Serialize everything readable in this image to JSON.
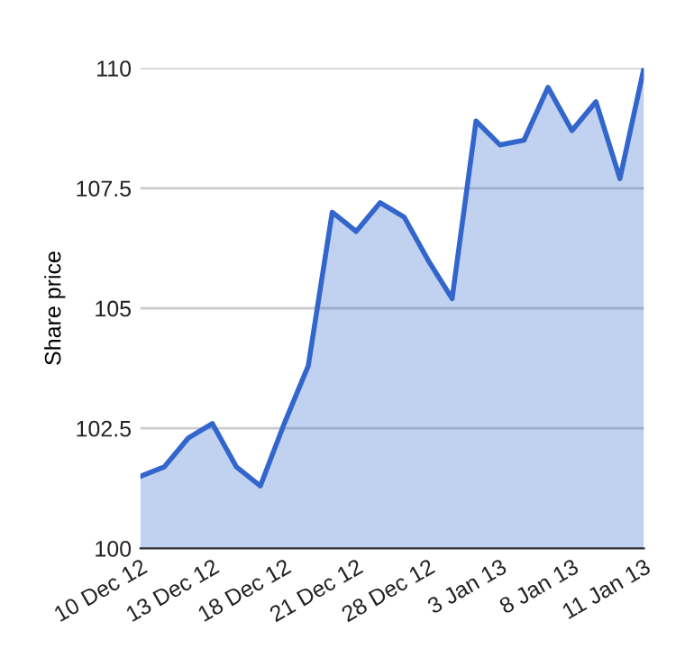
{
  "chart_data": {
    "type": "area",
    "ylabel": "Share price",
    "categories": [
      "10 Dec 12",
      null,
      null,
      "13 Dec 12",
      null,
      null,
      "18 Dec 12",
      null,
      null,
      "21 Dec 12",
      null,
      null,
      "28 Dec 12",
      null,
      null,
      "3 Jan 13",
      null,
      null,
      "8 Jan 13",
      null,
      null,
      "11 Jan 13"
    ],
    "series": [
      {
        "color": "#3366cc",
        "values": [
          101.5,
          101.7,
          102.3,
          102.6,
          101.7,
          101.3,
          102.6,
          103.8,
          107.0,
          106.6,
          107.2,
          106.9,
          106.0,
          105.2,
          108.9,
          108.4,
          108.5,
          109.6,
          108.7,
          109.3,
          107.7,
          110.0
        ]
      }
    ],
    "ylim": [
      100,
      110
    ],
    "yticks": [
      100,
      {
        "value": 102.5,
        "label": "102.5"
      },
      105,
      {
        "value": 107.5,
        "label": "107.5"
      },
      110
    ],
    "grid": "y",
    "legend": false
  }
}
